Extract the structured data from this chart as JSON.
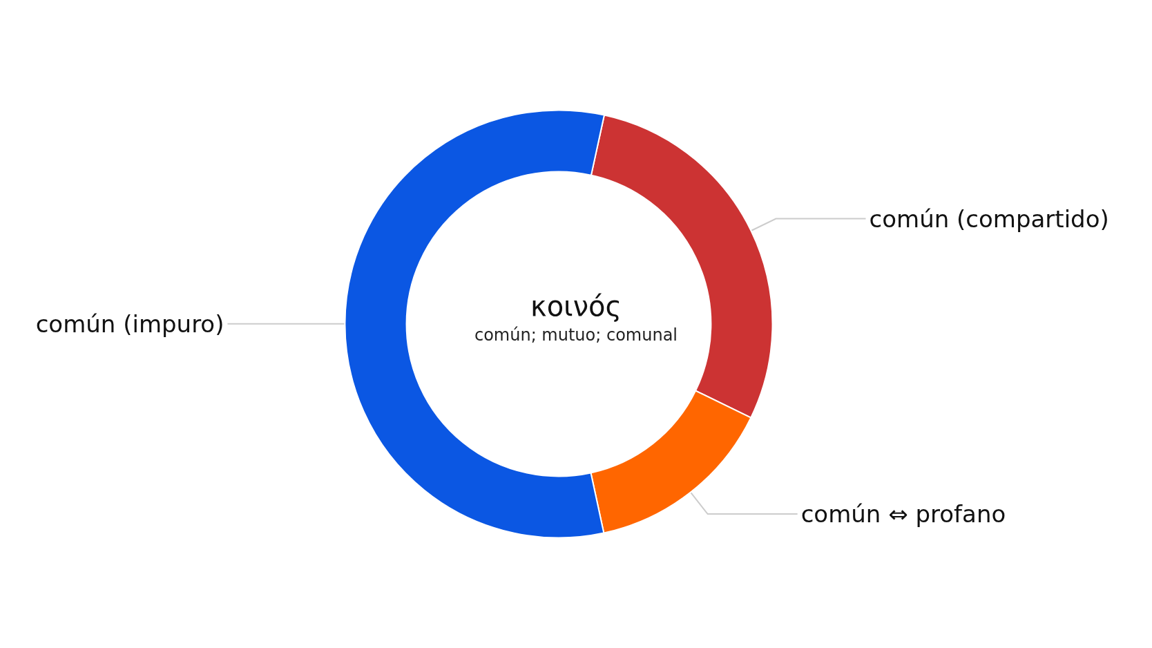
{
  "chart_data": {
    "type": "donut",
    "title": "κοινός",
    "subtitle": "común; mutuo; comunal",
    "categories": [
      "común (compartido)",
      "común ⇔ profano",
      "común (impuro)"
    ],
    "values": [
      28.8,
      14.4,
      56.8
    ],
    "colors": [
      "#cc3333",
      "#ff6600",
      "#0b57e3"
    ],
    "legend": false
  }
}
